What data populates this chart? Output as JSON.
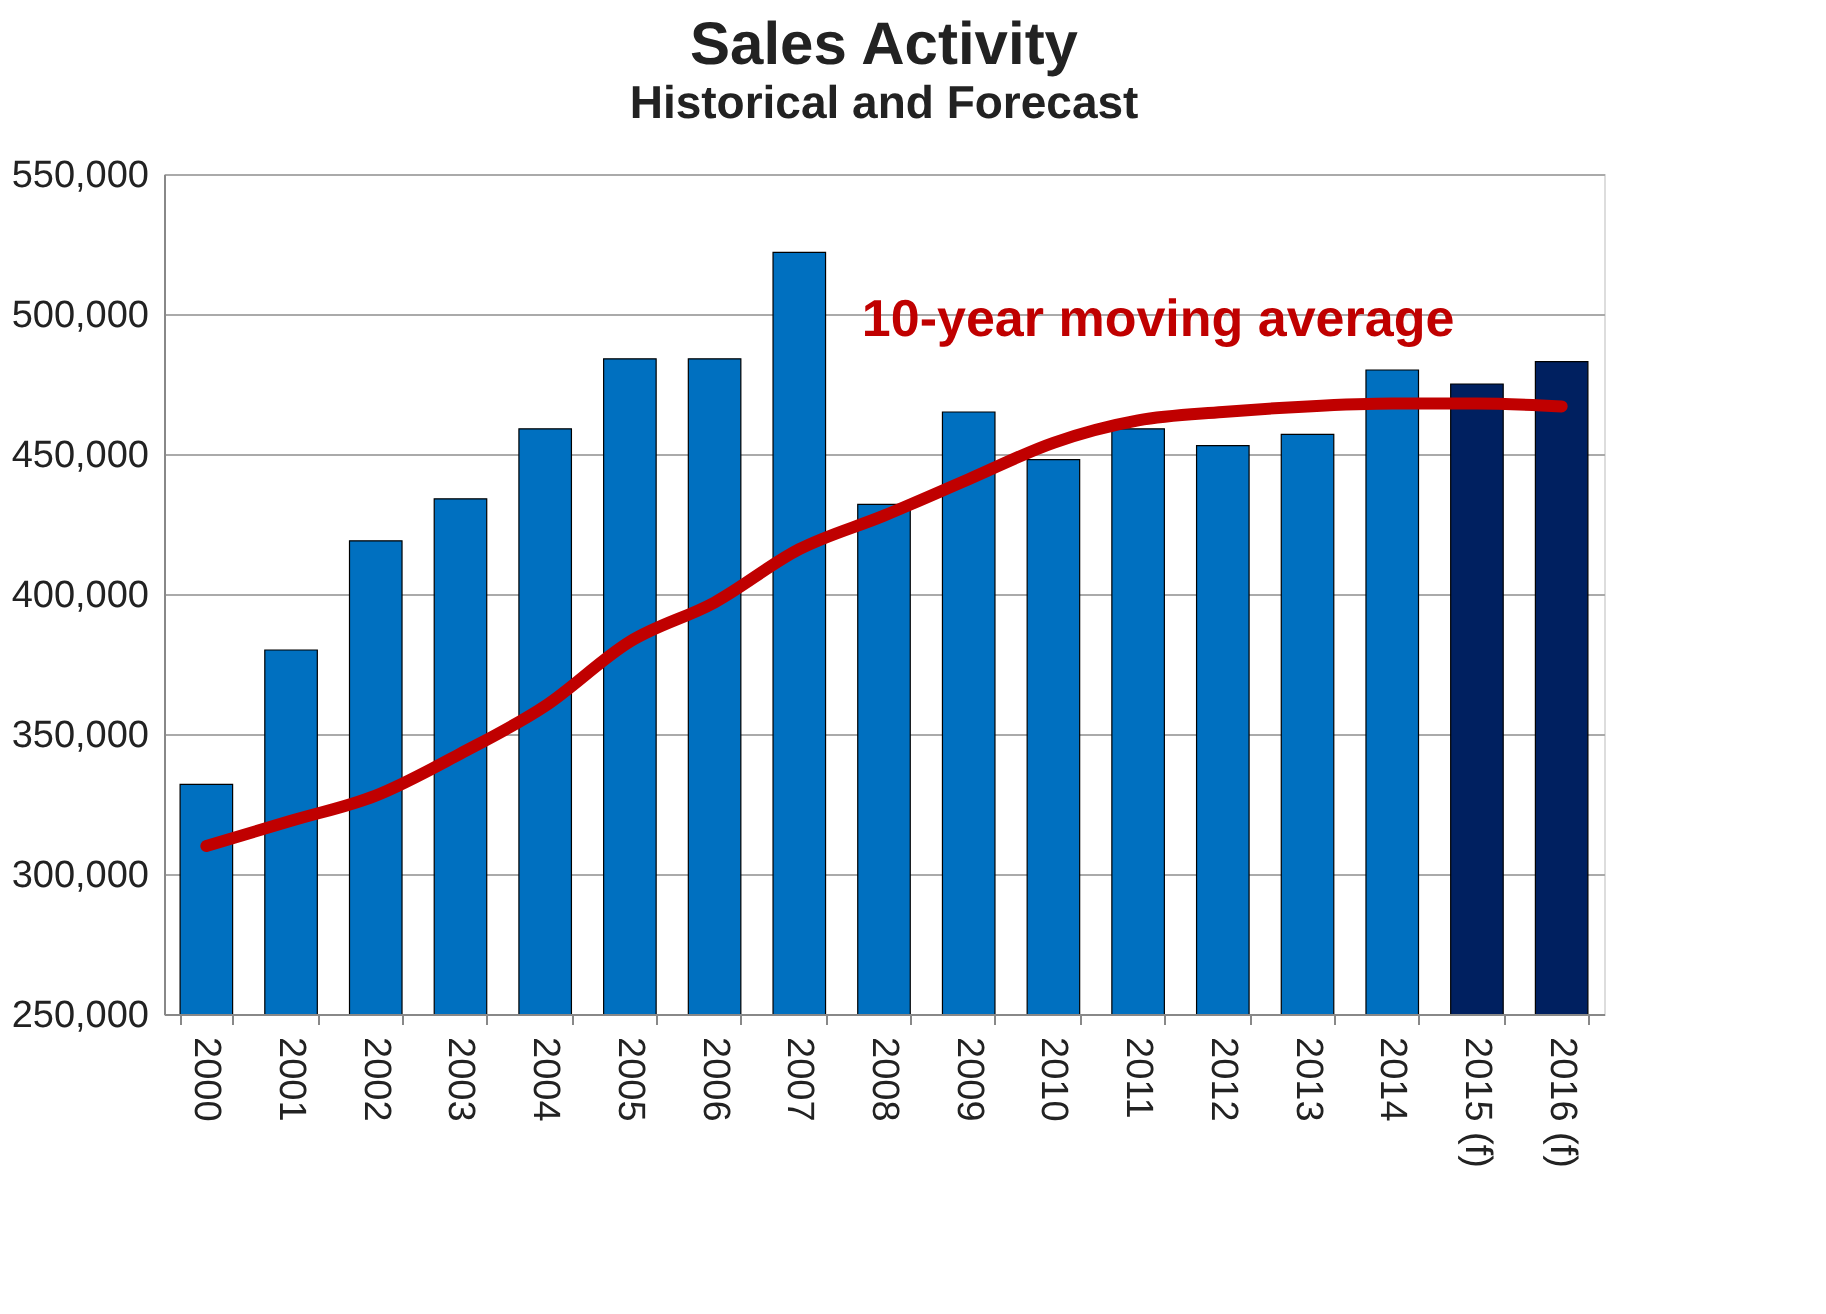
{
  "chart_data": {
    "type": "bar",
    "title": "Sales Activity",
    "subtitle": "Historical and Forecast",
    "categories": [
      "2000",
      "2001",
      "2002",
      "2003",
      "2004",
      "2005",
      "2006",
      "2007",
      "2008",
      "2009",
      "2010",
      "2011",
      "2012",
      "2013",
      "2014",
      "2015 (f)",
      "2016 (f)"
    ],
    "series": [
      {
        "colors": [
          "#0070c0",
          "#0070c0",
          "#0070c0",
          "#0070c0",
          "#0070c0",
          "#0070c0",
          "#0070c0",
          "#0070c0",
          "#0070c0",
          "#0070c0",
          "#0070c0",
          "#0070c0",
          "#0070c0",
          "#0070c0",
          "#0070c0",
          "#002060",
          "#002060"
        ],
        "values": [
          332000,
          380000,
          419000,
          434000,
          459000,
          484000,
          484000,
          522000,
          432000,
          465000,
          448000,
          459000,
          453000,
          457000,
          480000,
          475000,
          483000
        ]
      },
      {
        "type": "line",
        "name": "10-year moving average",
        "color": "#c00000",
        "values": [
          310000,
          319000,
          328000,
          343000,
          360000,
          383000,
          397000,
          416000,
          428000,
          441000,
          454000,
          462000,
          465000,
          467000,
          468000,
          468000,
          467000
        ]
      }
    ],
    "ylim": [
      250000,
      550000
    ],
    "yticks": [
      {
        "value": 250000,
        "label": "250,000"
      },
      {
        "value": 300000,
        "label": "300,000"
      },
      {
        "value": 350000,
        "label": "350,000"
      },
      {
        "value": 400000,
        "label": "400,000"
      },
      {
        "value": 450000,
        "label": "450,000"
      },
      {
        "value": 500000,
        "label": "500,000"
      },
      {
        "value": 550000,
        "label": "550,000"
      }
    ],
    "grid": "y"
  }
}
